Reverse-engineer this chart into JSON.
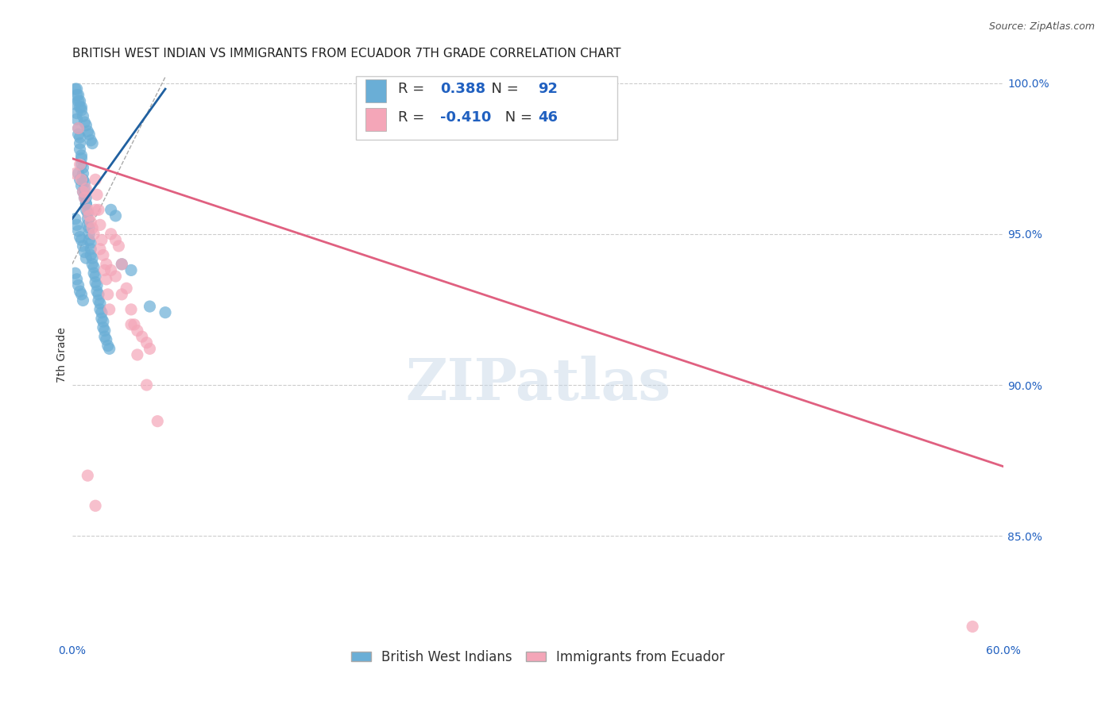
{
  "title": "BRITISH WEST INDIAN VS IMMIGRANTS FROM ECUADOR 7TH GRADE CORRELATION CHART",
  "source": "Source: ZipAtlas.com",
  "xlabel_bottom": "",
  "ylabel": "7th Grade",
  "watermark": "ZIPatlas",
  "xlim": [
    0.0,
    0.6
  ],
  "ylim": [
    0.815,
    1.005
  ],
  "xticks": [
    0.0,
    0.1,
    0.2,
    0.3,
    0.4,
    0.5,
    0.6
  ],
  "xticklabels": [
    "0.0%",
    "",
    "",
    "",
    "",
    "",
    "60.0%"
  ],
  "yticks_right": [
    1.0,
    0.95,
    0.9,
    0.85
  ],
  "ytick_labels_right": [
    "100.0%",
    "95.0%",
    "90.0%",
    "85.0%"
  ],
  "legend_blue_r": "0.388",
  "legend_blue_n": "92",
  "legend_pink_r": "-0.410",
  "legend_pink_n": "46",
  "legend_label_blue": "British West Indians",
  "legend_label_pink": "Immigrants from Ecuador",
  "blue_color": "#6aaed6",
  "pink_color": "#f4a6b8",
  "blue_line_color": "#2060a0",
  "pink_line_color": "#e06080",
  "blue_scatter_x": [
    0.002,
    0.003,
    0.003,
    0.004,
    0.004,
    0.005,
    0.005,
    0.005,
    0.006,
    0.006,
    0.006,
    0.007,
    0.007,
    0.007,
    0.008,
    0.008,
    0.008,
    0.009,
    0.009,
    0.009,
    0.01,
    0.01,
    0.01,
    0.011,
    0.011,
    0.011,
    0.012,
    0.012,
    0.012,
    0.013,
    0.013,
    0.014,
    0.014,
    0.015,
    0.015,
    0.016,
    0.016,
    0.017,
    0.017,
    0.018,
    0.018,
    0.019,
    0.019,
    0.02,
    0.02,
    0.021,
    0.021,
    0.022,
    0.023,
    0.024,
    0.002,
    0.003,
    0.004,
    0.005,
    0.006,
    0.007,
    0.008,
    0.009,
    0.01,
    0.011,
    0.012,
    0.013,
    0.004,
    0.005,
    0.006,
    0.007,
    0.008,
    0.009,
    0.025,
    0.028,
    0.002,
    0.003,
    0.004,
    0.005,
    0.006,
    0.007,
    0.008,
    0.009,
    0.032,
    0.038,
    0.002,
    0.003,
    0.004,
    0.005,
    0.006,
    0.007,
    0.05,
    0.06,
    0.003,
    0.004,
    0.005,
    0.006
  ],
  "blue_scatter_y": [
    0.993,
    0.99,
    0.988,
    0.985,
    0.983,
    0.982,
    0.98,
    0.978,
    0.976,
    0.975,
    0.973,
    0.972,
    0.97,
    0.968,
    0.967,
    0.965,
    0.963,
    0.962,
    0.96,
    0.958,
    0.957,
    0.955,
    0.953,
    0.952,
    0.95,
    0.948,
    0.947,
    0.945,
    0.943,
    0.942,
    0.94,
    0.939,
    0.937,
    0.936,
    0.934,
    0.933,
    0.931,
    0.93,
    0.928,
    0.927,
    0.925,
    0.924,
    0.922,
    0.921,
    0.919,
    0.918,
    0.916,
    0.915,
    0.913,
    0.912,
    0.998,
    0.996,
    0.994,
    0.992,
    0.991,
    0.989,
    0.987,
    0.986,
    0.984,
    0.983,
    0.981,
    0.98,
    0.97,
    0.968,
    0.966,
    0.964,
    0.962,
    0.96,
    0.958,
    0.956,
    0.955,
    0.953,
    0.951,
    0.949,
    0.948,
    0.946,
    0.944,
    0.942,
    0.94,
    0.938,
    0.937,
    0.935,
    0.933,
    0.931,
    0.93,
    0.928,
    0.926,
    0.924,
    0.998,
    0.996,
    0.994,
    0.992
  ],
  "pink_scatter_x": [
    0.002,
    0.004,
    0.005,
    0.006,
    0.007,
    0.008,
    0.009,
    0.01,
    0.011,
    0.012,
    0.013,
    0.014,
    0.015,
    0.016,
    0.017,
    0.018,
    0.019,
    0.02,
    0.021,
    0.022,
    0.023,
    0.024,
    0.025,
    0.028,
    0.03,
    0.032,
    0.035,
    0.038,
    0.04,
    0.042,
    0.045,
    0.048,
    0.05,
    0.015,
    0.018,
    0.022,
    0.025,
    0.028,
    0.032,
    0.038,
    0.042,
    0.048,
    0.055,
    0.58,
    0.01,
    0.015
  ],
  "pink_scatter_y": [
    0.97,
    0.985,
    0.973,
    0.968,
    0.964,
    0.962,
    0.965,
    0.958,
    0.956,
    0.954,
    0.952,
    0.95,
    0.968,
    0.963,
    0.958,
    0.953,
    0.948,
    0.943,
    0.938,
    0.935,
    0.93,
    0.925,
    0.95,
    0.948,
    0.946,
    0.94,
    0.932,
    0.925,
    0.92,
    0.918,
    0.916,
    0.914,
    0.912,
    0.958,
    0.945,
    0.94,
    0.938,
    0.936,
    0.93,
    0.92,
    0.91,
    0.9,
    0.888,
    0.82,
    0.87,
    0.86
  ],
  "blue_trend_x": [
    0.0,
    0.06
  ],
  "blue_trend_y": [
    0.955,
    0.998
  ],
  "pink_trend_x": [
    0.0,
    0.6
  ],
  "pink_trend_y": [
    0.975,
    0.873
  ],
  "diag_line_x": [
    0.0,
    0.06
  ],
  "diag_line_y": [
    0.94,
    1.002
  ],
  "background_color": "#ffffff",
  "grid_color": "#cccccc",
  "title_fontsize": 11,
  "axis_label_fontsize": 10,
  "tick_fontsize": 10
}
